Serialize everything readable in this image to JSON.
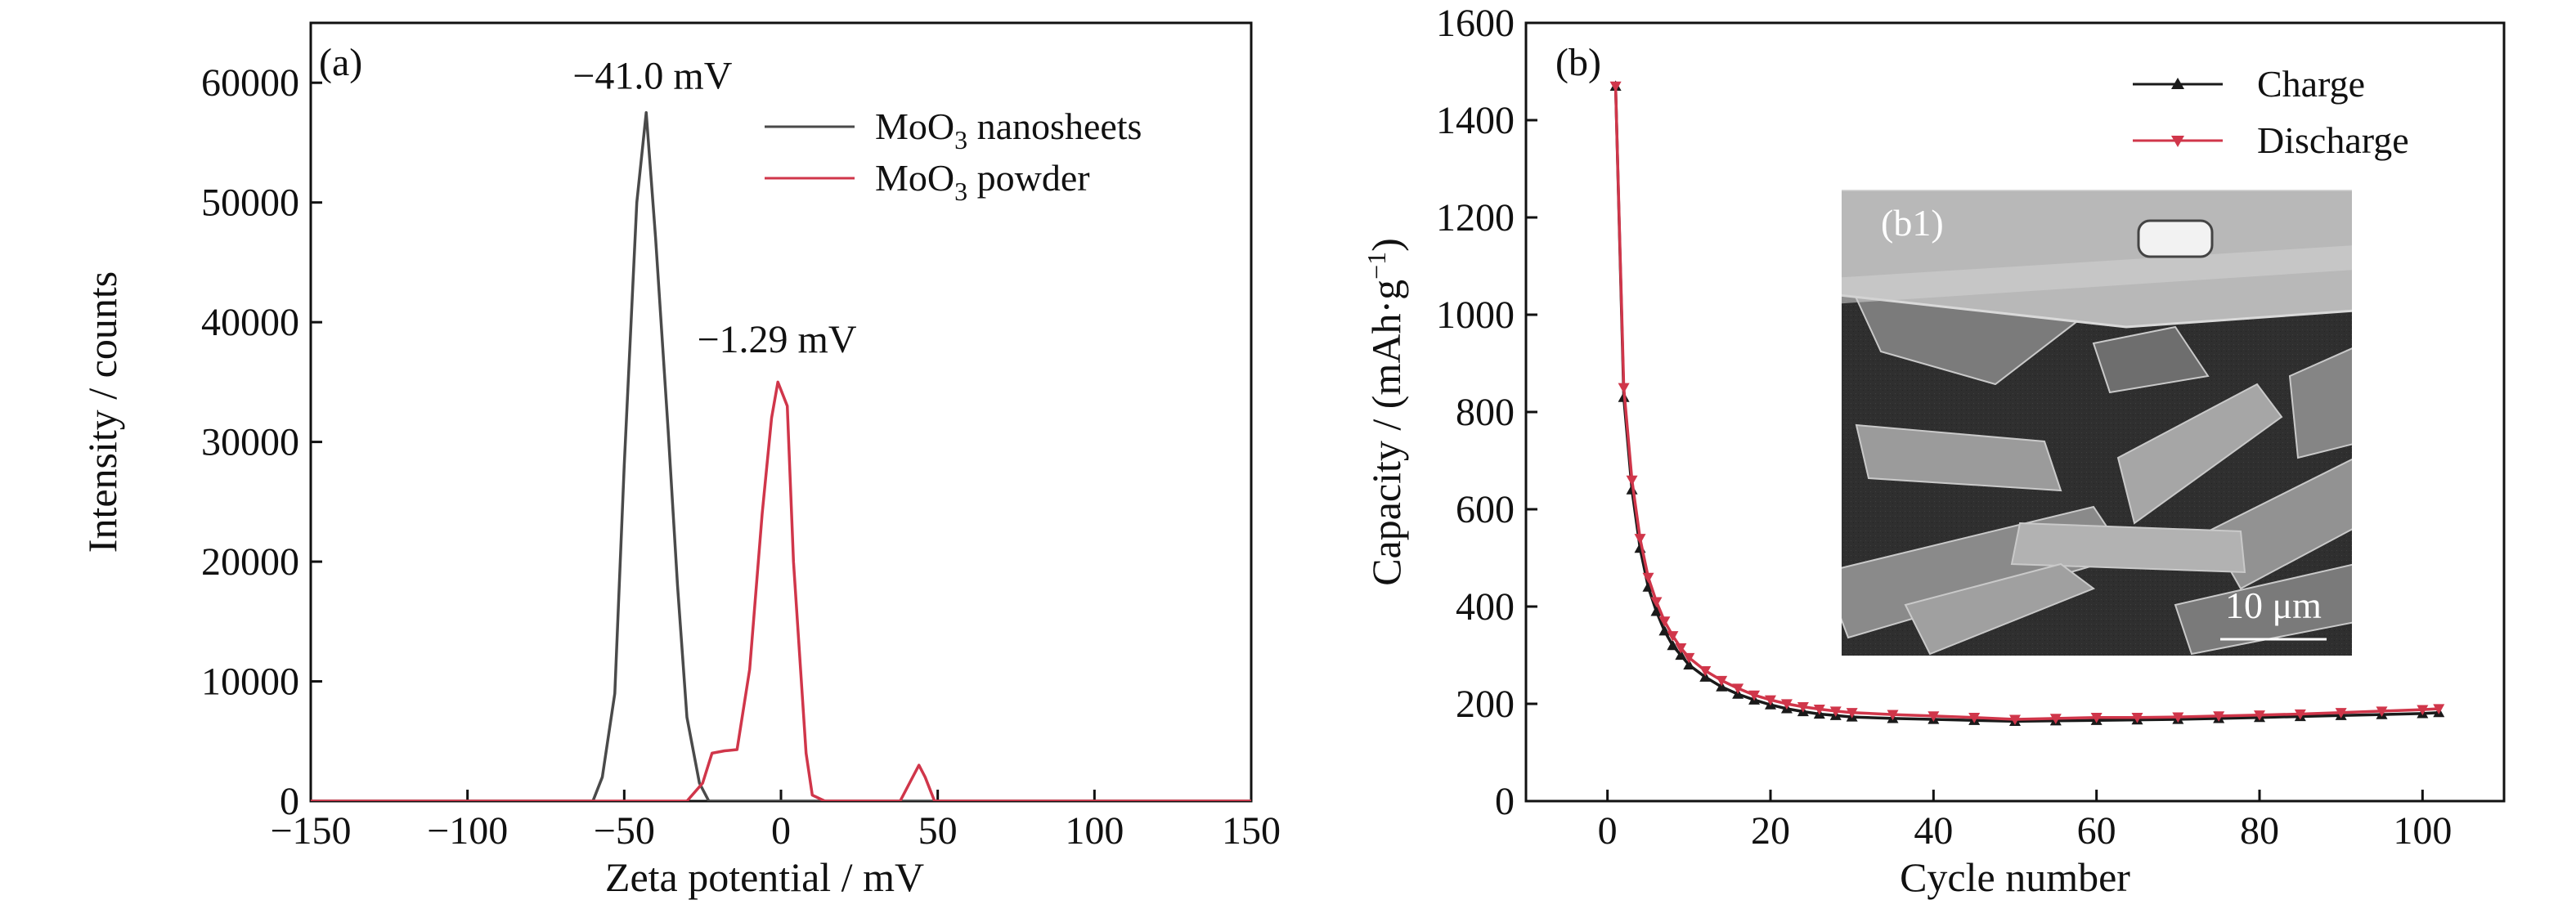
{
  "chart_data": [
    {
      "type": "line",
      "panel_label": "(a)",
      "xlabel": "Zeta potential / mV",
      "ylabel": "Intensity / counts",
      "xlim": [
        -150,
        150
      ],
      "ylim": [
        0,
        65000
      ],
      "xticks": [
        -150,
        -100,
        -50,
        0,
        50,
        100,
        150
      ],
      "xtick_labels": [
        "−150",
        "−100",
        "−50",
        "0",
        "50",
        "100",
        "150"
      ],
      "yticks": [
        0,
        10000,
        20000,
        30000,
        40000,
        50000,
        60000
      ],
      "ytick_labels": [
        "0",
        "10000",
        "20000",
        "30000",
        "40000",
        "50000",
        "60000"
      ],
      "grid": false,
      "legend_position": "top-right",
      "legend": [
        {
          "main": "MoO",
          "sub": "3",
          "rest": " nanosheets"
        },
        {
          "main": "MoO",
          "sub": "3",
          "rest": " powder"
        }
      ],
      "annotations": [
        {
          "text": "−41.0 mV",
          "x": -41,
          "y": 59500
        },
        {
          "text": "−1.29 mV",
          "x": -1.3,
          "y": 37500
        }
      ],
      "series": [
        {
          "name": "MoO3 nanosheets",
          "color": "#4a4a4a",
          "x": [
            -150,
            -60,
            -57,
            -53,
            -50,
            -46,
            -43,
            -40,
            -36,
            -33,
            -30,
            -26,
            -23,
            -18,
            150
          ],
          "y": [
            0,
            0,
            2000,
            9000,
            28000,
            50000,
            57500,
            47000,
            31000,
            18000,
            7000,
            1500,
            0,
            0,
            0
          ]
        },
        {
          "name": "MoO3 powder",
          "color": "#d0364a",
          "x": [
            -150,
            -30,
            -25,
            -22,
            -18,
            -14,
            -10,
            -6,
            -3,
            -1,
            2,
            4,
            8,
            10,
            14,
            38,
            41,
            44,
            46,
            49,
            150
          ],
          "y": [
            0,
            0,
            1500,
            4000,
            4200,
            4300,
            11000,
            24000,
            32000,
            35000,
            33000,
            20000,
            4000,
            500,
            0,
            0,
            1500,
            3000,
            2000,
            0,
            0
          ]
        }
      ]
    },
    {
      "type": "line",
      "panel_label": "(b)",
      "xlabel": "Cycle number",
      "ylabel": "Capacity / (mAh·g",
      "ylabel_sup": "−1",
      "ylabel_tail": ")",
      "xlim": [
        -10,
        110
      ],
      "ylim": [
        0,
        1600
      ],
      "xticks": [
        0,
        20,
        40,
        60,
        80,
        100
      ],
      "xtick_labels": [
        "0",
        "20",
        "40",
        "60",
        "80",
        "100"
      ],
      "yticks": [
        0,
        200,
        400,
        600,
        800,
        1000,
        1200,
        1400,
        1600
      ],
      "ytick_labels": [
        "0",
        "200",
        "400",
        "600",
        "800",
        "1000",
        "1200",
        "1400",
        "1600"
      ],
      "grid": false,
      "legend_position": "top-right",
      "legend": [
        "Charge",
        "Discharge"
      ],
      "inset": {
        "label": "(b1)",
        "scale_bar": "10 μm"
      },
      "series": [
        {
          "name": "Charge",
          "color": "#1a1a1a",
          "marker": "triangle-up",
          "x": [
            1,
            2,
            3,
            4,
            5,
            6,
            7,
            8,
            9,
            10,
            12,
            14,
            16,
            18,
            20,
            22,
            24,
            26,
            28,
            30,
            35,
            40,
            45,
            50,
            55,
            60,
            65,
            70,
            75,
            80,
            85,
            90,
            95,
            100,
            102
          ],
          "y": [
            1470,
            830,
            640,
            520,
            440,
            390,
            350,
            320,
            300,
            280,
            255,
            235,
            220,
            208,
            198,
            190,
            184,
            179,
            176,
            173,
            170,
            168,
            166,
            164,
            165,
            166,
            167,
            168,
            170,
            172,
            174,
            176,
            178,
            180,
            182
          ]
        },
        {
          "name": "Discharge",
          "color": "#d0364a",
          "marker": "triangle-down",
          "x": [
            1,
            2,
            3,
            4,
            5,
            6,
            7,
            8,
            9,
            10,
            12,
            14,
            16,
            18,
            20,
            22,
            24,
            26,
            28,
            30,
            35,
            40,
            45,
            50,
            55,
            60,
            65,
            70,
            75,
            80,
            85,
            90,
            95,
            100,
            102
          ],
          "y": [
            1470,
            850,
            660,
            540,
            460,
            410,
            370,
            340,
            315,
            295,
            268,
            248,
            232,
            218,
            208,
            200,
            194,
            189,
            185,
            182,
            178,
            175,
            172,
            168,
            170,
            172,
            172,
            173,
            175,
            177,
            179,
            182,
            185,
            188,
            190
          ]
        }
      ]
    }
  ]
}
